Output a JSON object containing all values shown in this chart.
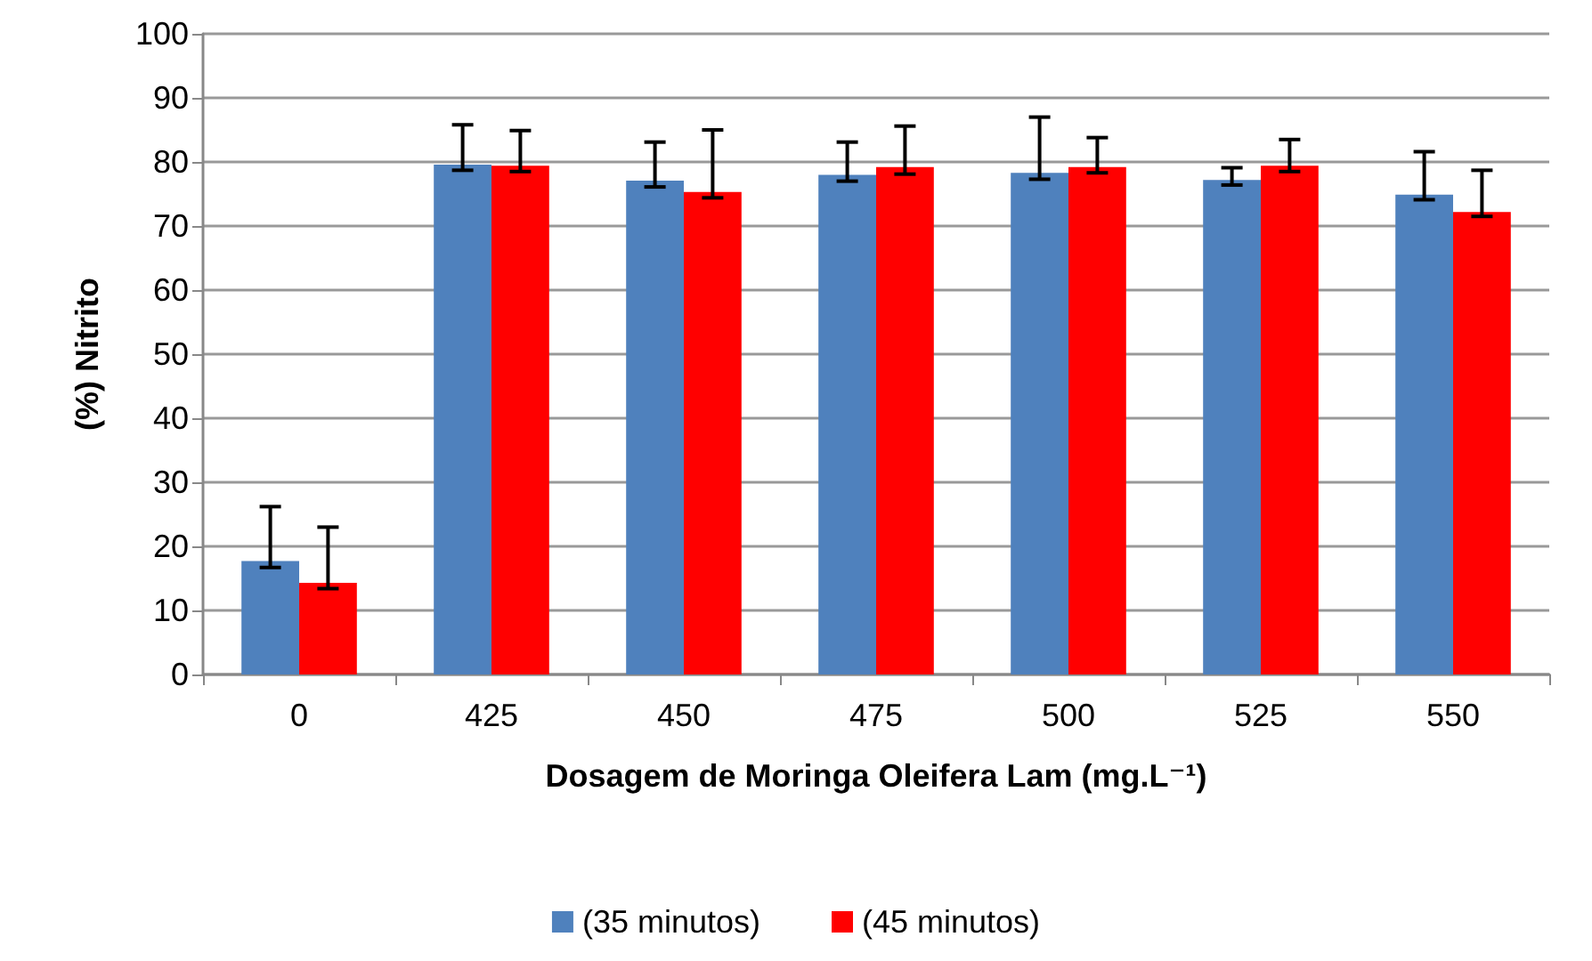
{
  "chart_data": {
    "type": "bar",
    "xlabel": "Dosagem de Moringa Oleifera Lam (mg.L⁻¹)",
    "ylabel": "(%) Nitrito",
    "categories": [
      "0",
      "425",
      "450",
      "475",
      "500",
      "525",
      "550"
    ],
    "series": [
      {
        "name": "(35 minutos)",
        "color": "#4f81bd",
        "values": [
          17.7,
          79.6,
          77.1,
          78.0,
          78.3,
          77.2,
          74.9
        ],
        "errors": [
          [
            16.7,
            26.2
          ],
          [
            78.7,
            85.8
          ],
          [
            76.1,
            83.1
          ],
          [
            77.0,
            83.1
          ],
          [
            77.3,
            87.0
          ],
          [
            76.4,
            79.1
          ],
          [
            74.1,
            81.6
          ]
        ]
      },
      {
        "name": "(45 minutos)",
        "color": "#ff0000",
        "values": [
          14.3,
          79.4,
          75.3,
          79.2,
          79.2,
          79.4,
          72.2
        ],
        "errors": [
          [
            13.4,
            23.0
          ],
          [
            78.5,
            84.9
          ],
          [
            74.4,
            85.0
          ],
          [
            78.1,
            85.6
          ],
          [
            78.3,
            83.8
          ],
          [
            78.5,
            83.5
          ],
          [
            71.5,
            78.7
          ]
        ]
      }
    ],
    "ylim": [
      0,
      100
    ],
    "yticks": [
      0,
      10,
      20,
      30,
      40,
      50,
      60,
      70,
      80,
      90,
      100
    ],
    "grid": "y",
    "legend": "bottom"
  }
}
